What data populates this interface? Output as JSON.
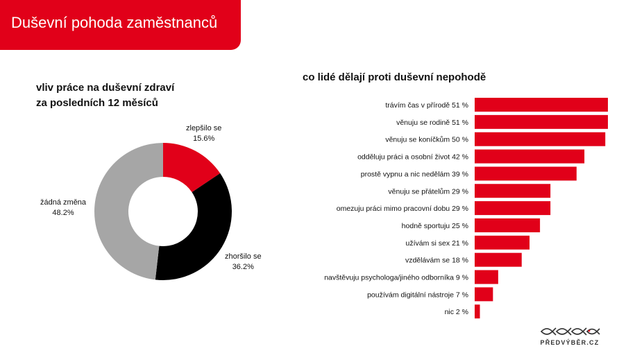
{
  "header": {
    "title": "Duševní pohoda zaměstnanců"
  },
  "colors": {
    "accent": "#e10019",
    "black": "#000000",
    "gray": "#a6a6a6"
  },
  "chart_data": [
    {
      "type": "pie",
      "variant": "donut",
      "title_line1": "vliv práce na duševní zdraví",
      "title_line2": "za posledních 12 měsíců",
      "slices": [
        {
          "name": "zlepšilo se",
          "value": 15.6,
          "value_label": "15.6%",
          "color": "#e10019"
        },
        {
          "name": "zhoršilo se",
          "value": 36.2,
          "value_label": "36.2%",
          "color": "#000000"
        },
        {
          "name": "žádná změna",
          "value": 48.2,
          "value_label": "48.2%",
          "color": "#a6a6a6"
        }
      ]
    },
    {
      "type": "bar",
      "orientation": "horizontal",
      "title": "co lidé dělají proti duševní nepohodě",
      "unit": "%",
      "bar_color": "#e10019",
      "categories": [
        "trávím čas v přírodě",
        "věnuju se rodině",
        "věnuju se koníčkům",
        "odděluju práci a osobní život",
        "prostě vypnu a nic nedělám",
        "věnuju se přátelům",
        "omezuju práci mimo pracovní dobu",
        "hodně sportuju",
        "užívám si sex",
        "vzdělávám se",
        "navštěvuju psychologa/jiného odborníka",
        "používám digitální nástroje",
        "nic"
      ],
      "values": [
        51,
        51,
        50,
        42,
        39,
        29,
        29,
        25,
        21,
        18,
        9,
        7,
        2
      ],
      "labels": [
        "trávím čas v přírodě 51 %",
        "věnuju se rodině 51 %",
        "věnuju se koníčkům 50 %",
        "odděluju práci a osobní život 42 %",
        "prostě vypnu a nic nedělám 39 %",
        "věnuju se přátelům 29 %",
        "omezuju práci mimo pracovní dobu 29 %",
        "hodně sportuju 25 %",
        "užívám si sex 21 %",
        "vzdělávám se 18 %",
        "navštěvuju psychologa/jiného odborníka 9 %",
        "používám digitální nástroje 7 %",
        "nic 2 %"
      ]
    }
  ],
  "logo": {
    "text": "PŘEDVÝBĚR.CZ",
    "icon": "fish-logo-icon"
  }
}
